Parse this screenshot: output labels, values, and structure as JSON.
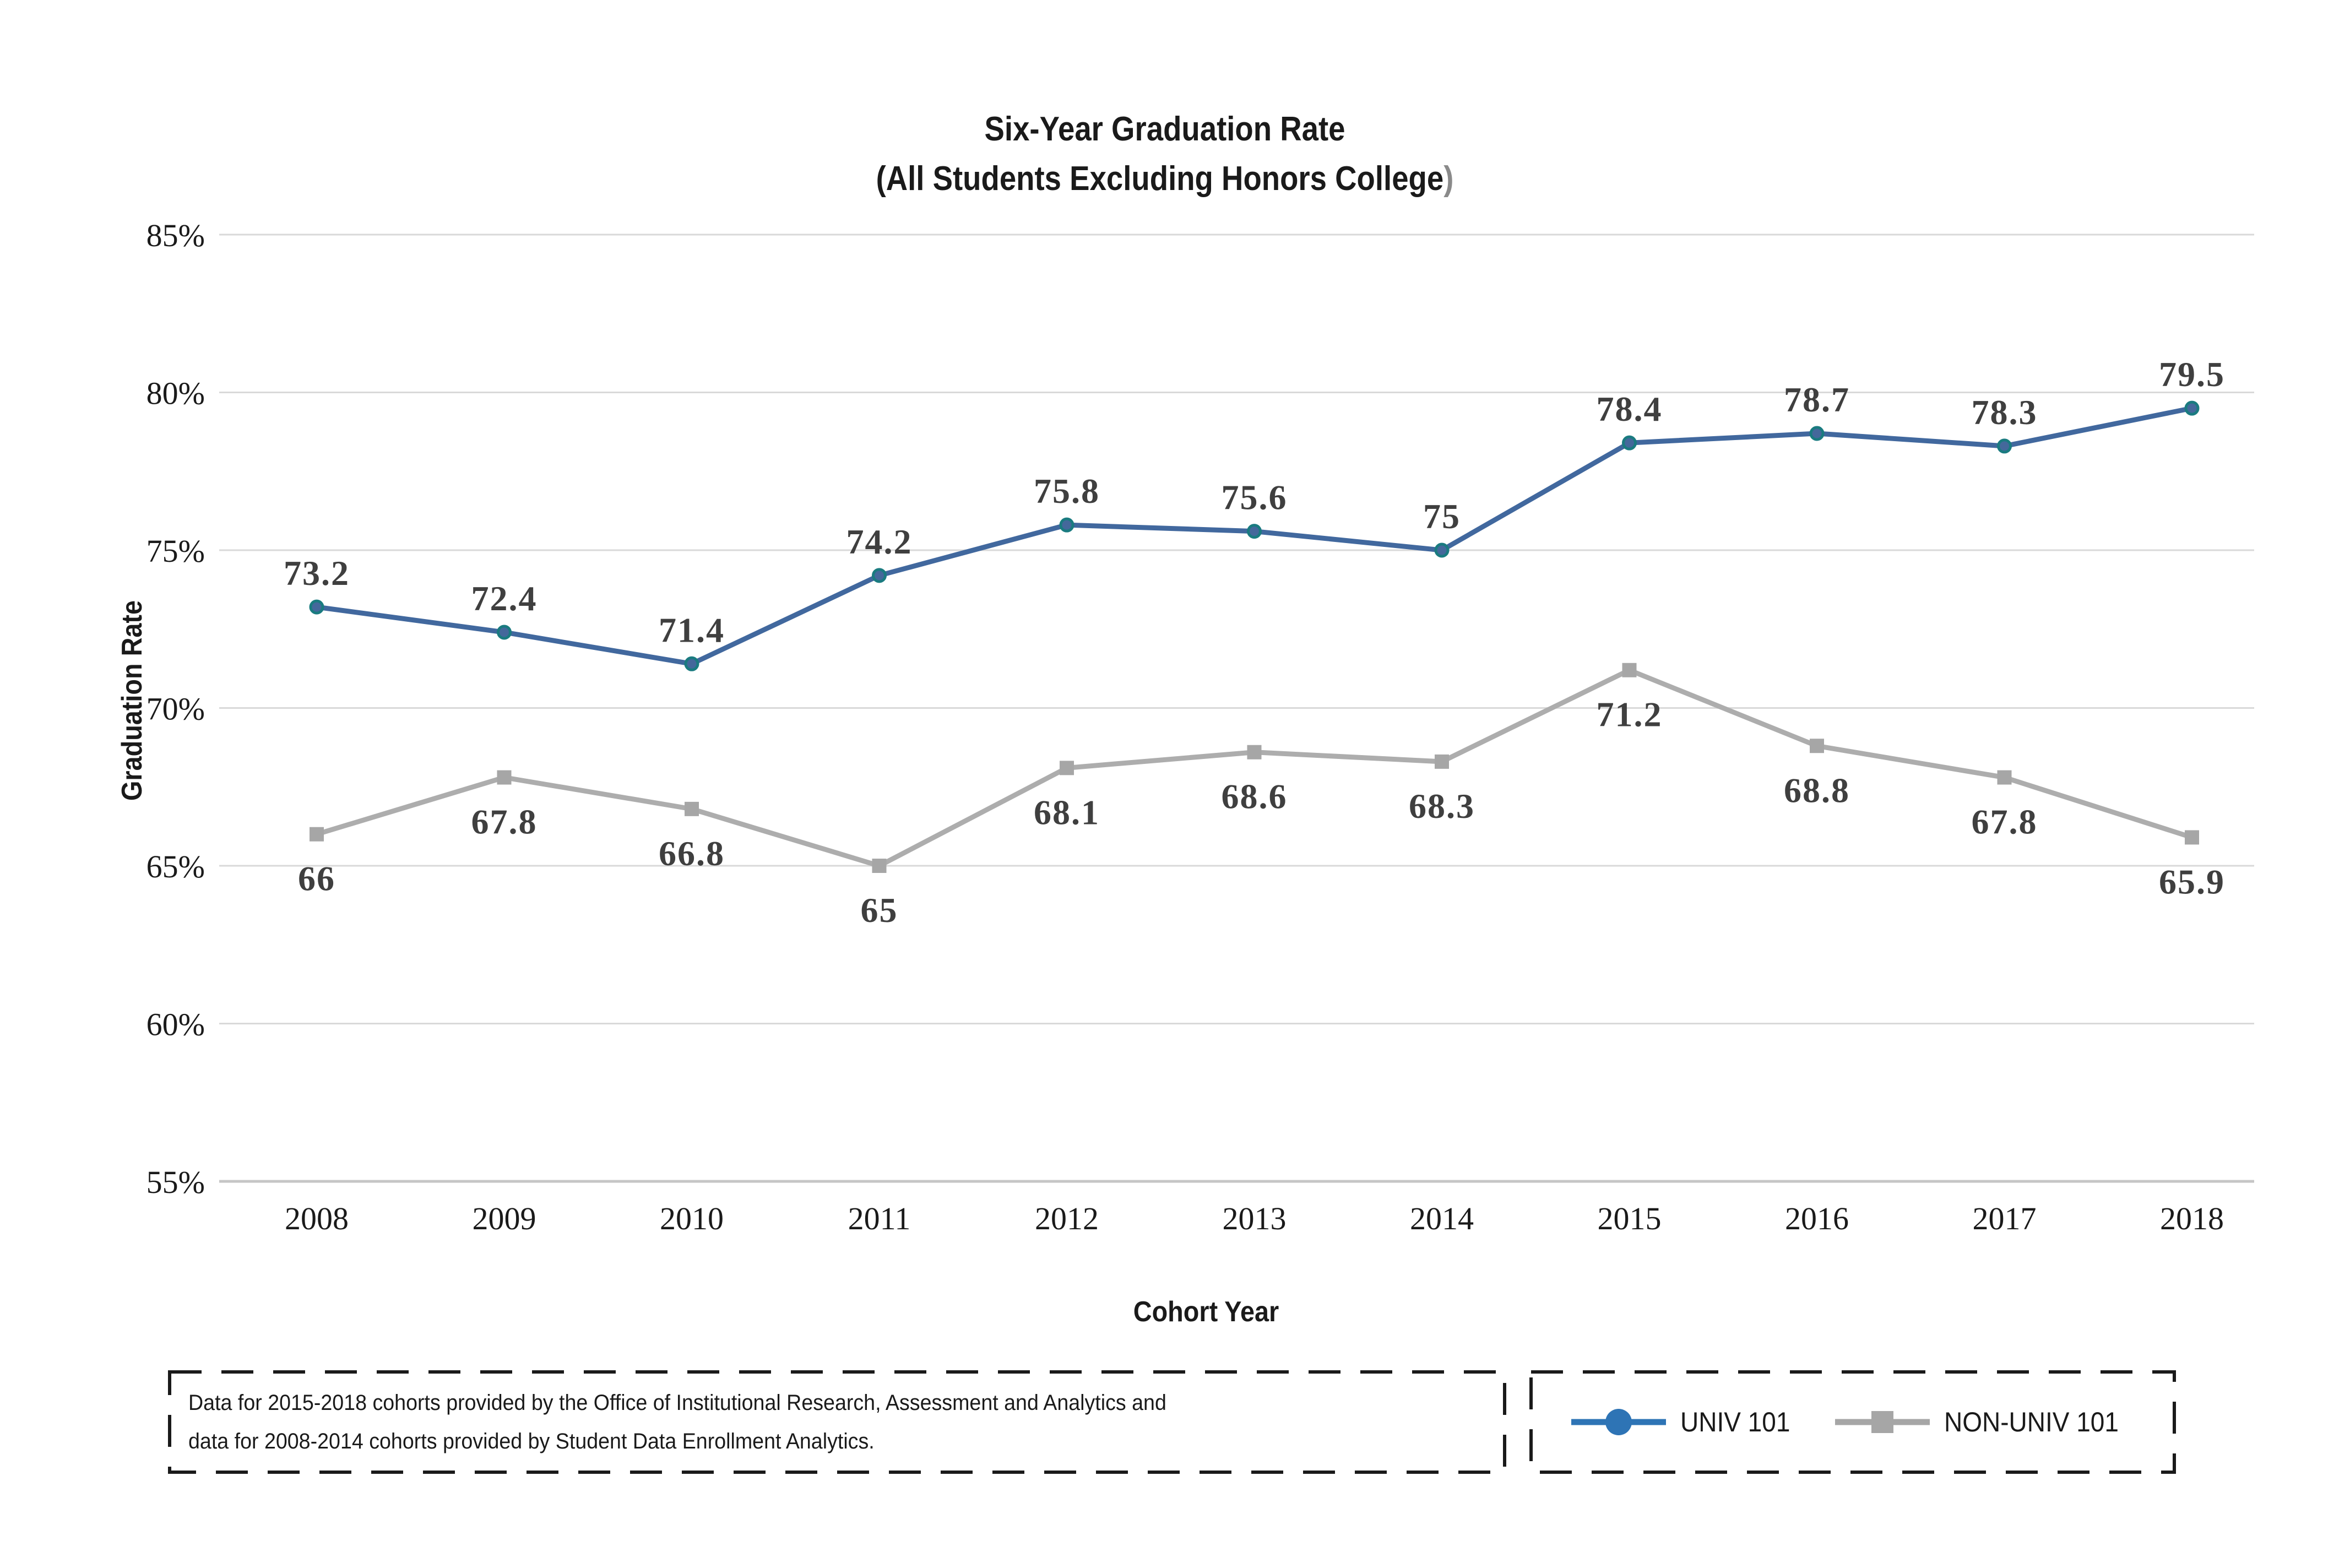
{
  "title": {
    "line1": "Six-Year Graduation Rate",
    "line2_main": "(All Students Excluding Honors College",
    "line2_paren": ")"
  },
  "y_axis": {
    "title": "Graduation Rate",
    "ticks": [
      {
        "label": "85%",
        "value": 85
      },
      {
        "label": "80%",
        "value": 80
      },
      {
        "label": "75%",
        "value": 75
      },
      {
        "label": "70%",
        "value": 70
      },
      {
        "label": "65%",
        "value": 65
      },
      {
        "label": "60%",
        "value": 60
      },
      {
        "label": "55%",
        "value": 55
      }
    ]
  },
  "x_axis": {
    "title": "Cohort Year",
    "ticks": [
      "2008",
      "2009",
      "2010",
      "2011",
      "2012",
      "2013",
      "2014",
      "2015",
      "2016",
      "2017",
      "2018"
    ]
  },
  "chart_data": {
    "type": "line",
    "title": "Six-Year Graduation Rate (All Students Excluding Honors College)",
    "xlabel": "Cohort Year",
    "ylabel": "Graduation Rate",
    "ylim": [
      55,
      85
    ],
    "grid": true,
    "legend_position": "bottom-right",
    "categories": [
      "2008",
      "2009",
      "2010",
      "2011",
      "2012",
      "2013",
      "2014",
      "2015",
      "2016",
      "2017",
      "2018"
    ],
    "series": [
      {
        "name": "UNIV 101",
        "marker": "circle",
        "label_position": "above",
        "line_color": "#41689e",
        "marker_fill": "#44689b",
        "marker_stroke": "#1a7b80",
        "values": [
          73.2,
          72.4,
          71.4,
          74.2,
          75.8,
          75.6,
          75,
          78.4,
          78.7,
          78.3,
          79.5
        ],
        "labels": [
          "73.2",
          "72.4",
          "71.4",
          "74.2",
          "75.8",
          "75.6",
          "75",
          "78.4",
          "78.7",
          "78.3",
          "79.5"
        ]
      },
      {
        "name": "NON-UNIV 101",
        "marker": "square",
        "label_position": "below",
        "line_color": "#adadad",
        "marker_fill": "#a6a6a6",
        "marker_stroke": "#a6a6a6",
        "values": [
          66,
          67.8,
          66.8,
          65,
          68.1,
          68.6,
          68.3,
          71.2,
          68.8,
          67.8,
          65.9
        ],
        "labels": [
          "66",
          "67.8",
          "66.8",
          "65",
          "68.1",
          "68.6",
          "68.3",
          "71.2",
          "68.8",
          "67.8",
          "65.9"
        ]
      }
    ],
    "data_label_color": "#3f3f3f",
    "gridline_color": "#d9d9d9",
    "axis_line_color": "#c6c6c6",
    "tick_color": "#1a1a1a"
  },
  "footnote": {
    "line1": "Data for 2015-2018 cohorts provided by the Office of Institutional Research, Assessment and Analytics and",
    "line2": "data for 2008-2014 cohorts provided by Student Data Enrollment Analytics."
  },
  "legend": {
    "items": [
      {
        "label": "UNIV 101",
        "marker": "circle",
        "color": "#2e74b5"
      },
      {
        "label": "NON-UNIV 101",
        "marker": "square",
        "color": "#a6a6a6"
      }
    ]
  }
}
